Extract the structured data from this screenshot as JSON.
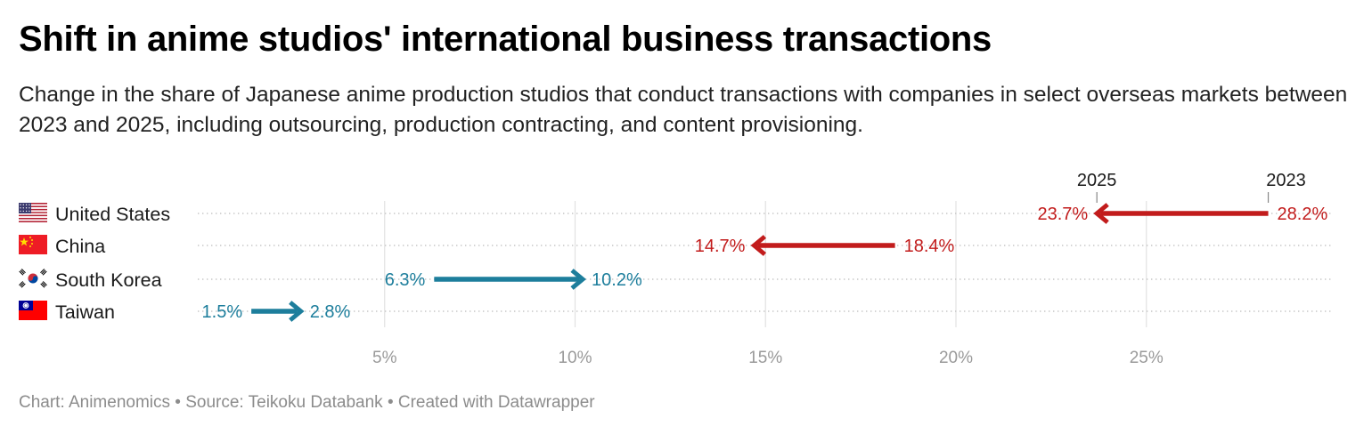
{
  "header": {
    "title": "Shift in anime studios' international business transactions",
    "subtitle": "Change in the share of Japanese anime production studios that conduct transactions with companies in select overseas markets between 2023 and 2025, including outsourcing, production contracting, and content provisioning."
  },
  "chart_data": {
    "type": "arrow",
    "unit": "%",
    "x_ticks": [
      "5%",
      "10%",
      "15%",
      "20%",
      "25%"
    ],
    "x_tick_values": [
      5,
      10,
      15,
      20,
      25
    ],
    "xlim": [
      0,
      30
    ],
    "grid": "vertical",
    "arrow_labels": {
      "start": "2023",
      "end": "2025"
    },
    "colors": {
      "decrease": "#c21c1c",
      "increase": "#1d7e9c",
      "grid": "#e2e2e2",
      "tick": "#9a9a9a"
    },
    "rows": [
      {
        "country": "United States",
        "flag": "us-flag-icon",
        "start": 28.2,
        "end": 23.7,
        "start_label": "28.2%",
        "end_label": "23.7%"
      },
      {
        "country": "China",
        "flag": "china-flag-icon",
        "start": 18.4,
        "end": 14.7,
        "start_label": "18.4%",
        "end_label": "14.7%"
      },
      {
        "country": "South Korea",
        "flag": "south-korea-flag-icon",
        "start": 6.3,
        "end": 10.2,
        "start_label": "6.3%",
        "end_label": "10.2%"
      },
      {
        "country": "Taiwan",
        "flag": "taiwan-flag-icon",
        "start": 1.5,
        "end": 2.8,
        "start_label": "1.5%",
        "end_label": "2.8%"
      }
    ]
  },
  "footer": {
    "credit": "Chart: Animenomics • Source: Teikoku Databank • Created with Datawrapper"
  }
}
